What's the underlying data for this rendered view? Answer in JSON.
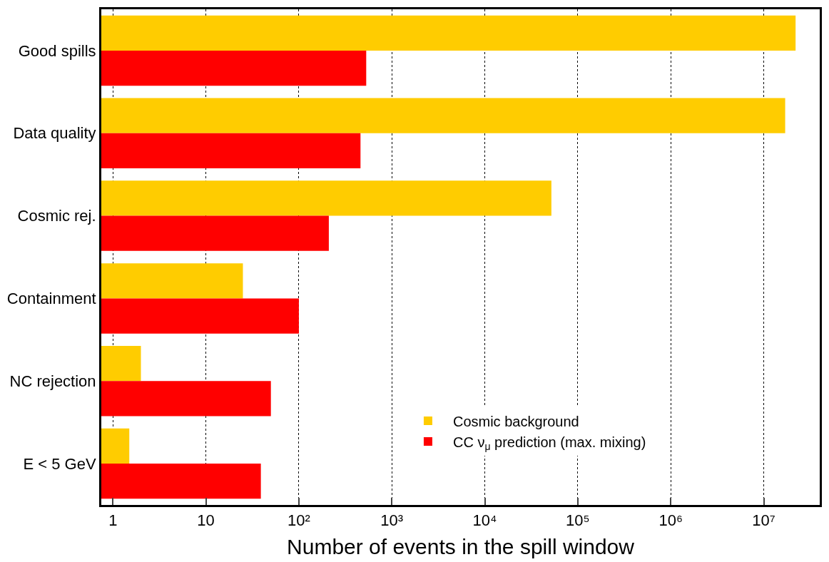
{
  "chart_data": {
    "type": "bar",
    "orientation": "horizontal",
    "log": "x",
    "categories": [
      "Good spills",
      "Data quality",
      "Cosmic rej.",
      "Containment",
      "NC rejection",
      "E < 5 GeV"
    ],
    "series": [
      {
        "name": "Cosmic background",
        "color": "#ffcc00",
        "values": [
          22000000,
          17000000,
          52000,
          25,
          2.0,
          1.5
        ]
      },
      {
        "name": "CC ν$_{μ}$ prediction (max. mixing)",
        "color": "#ff0000",
        "values": [
          530,
          460,
          210,
          100,
          50,
          39
        ]
      }
    ],
    "xlabel": "Number of events in the spill window",
    "xlim": [
      0.75,
      40000000
    ],
    "xticks": [
      1,
      10,
      {
        "value": 100,
        "label": "10²"
      },
      {
        "value": 1000,
        "label": "10³"
      },
      {
        "value": 10000,
        "label": "10⁴"
      },
      {
        "value": 100000,
        "label": "10⁵"
      },
      {
        "value": 1000000,
        "label": "10⁶"
      },
      {
        "value": 10000000,
        "label": "10⁷"
      }
    ],
    "grid": "x",
    "legend": "bottom right"
  }
}
